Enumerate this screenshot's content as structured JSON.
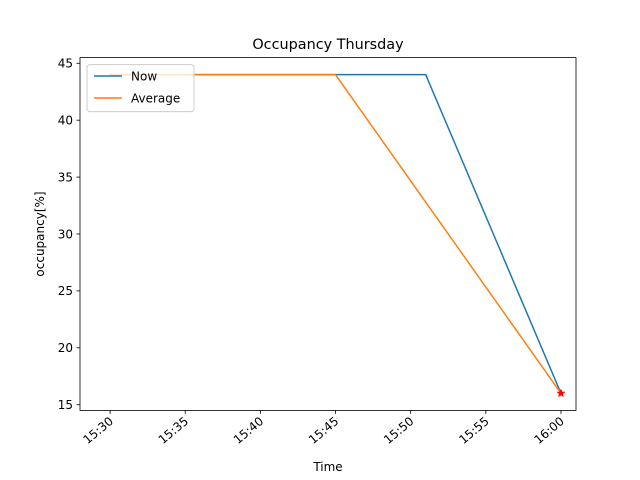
{
  "chart_data": {
    "type": "line",
    "title": "Occupancy Thursday",
    "xlabel": "Time",
    "ylabel": "occupancy[%]",
    "xlim": [
      "15:28",
      "16:01"
    ],
    "ylim": [
      14.5,
      45.5
    ],
    "xticks": [
      "15:30",
      "15:35",
      "15:40",
      "15:45",
      "15:50",
      "15:55",
      "16:00"
    ],
    "yticks": [
      15,
      20,
      25,
      30,
      35,
      40,
      45
    ],
    "grid": false,
    "legend": "upper-left",
    "series": [
      {
        "name": "Now",
        "color": "#1f77b4",
        "x": [
          "15:30",
          "15:35",
          "15:40",
          "15:45",
          "15:51",
          "16:00"
        ],
        "y": [
          44,
          44,
          44,
          44,
          44,
          16
        ]
      },
      {
        "name": "Average",
        "color": "#ff7f0e",
        "x": [
          "15:30",
          "15:35",
          "15:40",
          "15:45",
          "16:00"
        ],
        "y": [
          44,
          44,
          44,
          44,
          16
        ]
      }
    ],
    "markers": [
      {
        "x": "16:00",
        "y": 16,
        "symbol": "star",
        "color": "#ff0000"
      }
    ]
  }
}
